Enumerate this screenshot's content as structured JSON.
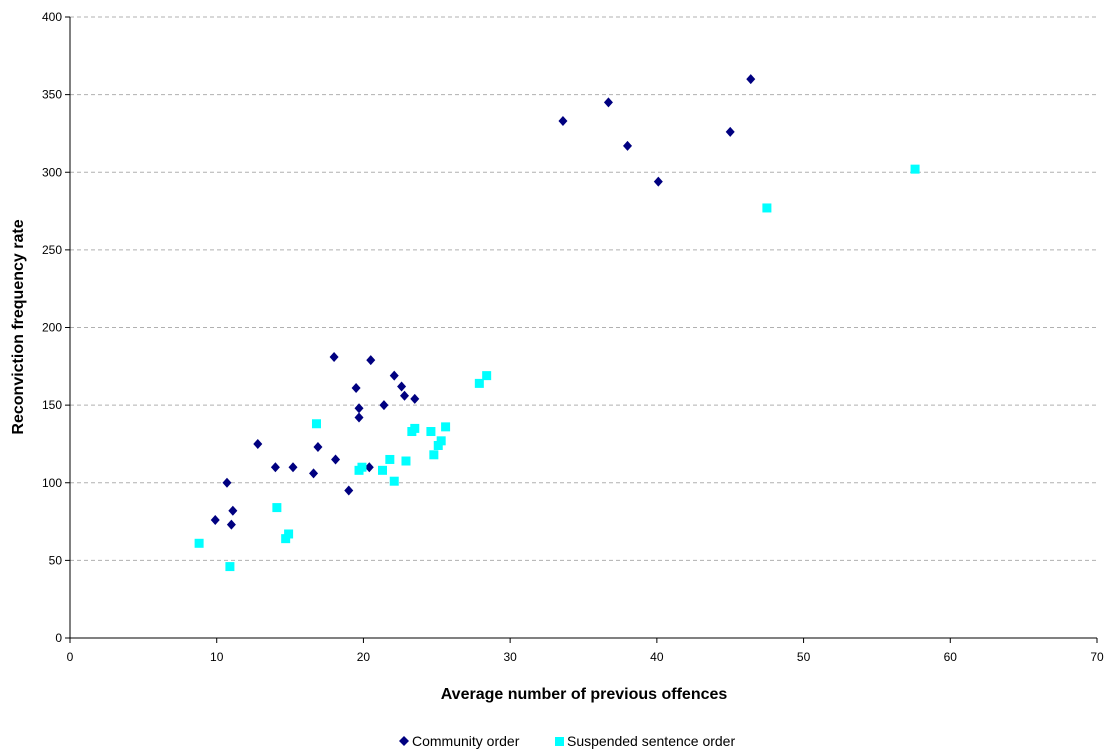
{
  "chart_data": {
    "type": "scatter",
    "title": "",
    "xlabel": "Average number of previous offences",
    "ylabel": "Reconviction frequency rate",
    "xlim": [
      0,
      70
    ],
    "ylim": [
      0,
      400
    ],
    "x_ticks": [
      0,
      10,
      20,
      30,
      40,
      50,
      60,
      70
    ],
    "y_ticks": [
      0,
      50,
      100,
      150,
      200,
      250,
      300,
      350,
      400
    ],
    "grid": "horizontal-dashed",
    "legend_position": "bottom",
    "series": [
      {
        "name": "Community order",
        "marker": "diamond",
        "color": "#000080",
        "points": [
          [
            9.9,
            76
          ],
          [
            10.7,
            100
          ],
          [
            11.0,
            73
          ],
          [
            11.1,
            82
          ],
          [
            12.8,
            125
          ],
          [
            14.0,
            110
          ],
          [
            15.2,
            110
          ],
          [
            16.6,
            106
          ],
          [
            16.9,
            123
          ],
          [
            18.0,
            181
          ],
          [
            18.1,
            115
          ],
          [
            19.0,
            95
          ],
          [
            19.5,
            161
          ],
          [
            19.7,
            148
          ],
          [
            19.7,
            142
          ],
          [
            20.4,
            110
          ],
          [
            20.5,
            179
          ],
          [
            21.4,
            150
          ],
          [
            22.1,
            169
          ],
          [
            22.6,
            162
          ],
          [
            22.8,
            156
          ],
          [
            23.5,
            154
          ],
          [
            33.6,
            333
          ],
          [
            36.7,
            345
          ],
          [
            38.0,
            317
          ],
          [
            40.1,
            294
          ],
          [
            45.0,
            326
          ],
          [
            46.4,
            360
          ]
        ]
      },
      {
        "name": "Suspended sentence order",
        "marker": "square",
        "color": "#00FFFF",
        "points": [
          [
            8.8,
            61
          ],
          [
            10.9,
            46
          ],
          [
            14.1,
            84
          ],
          [
            14.7,
            64
          ],
          [
            14.9,
            67
          ],
          [
            16.8,
            138
          ],
          [
            19.7,
            108
          ],
          [
            19.9,
            110
          ],
          [
            21.3,
            108
          ],
          [
            21.8,
            115
          ],
          [
            22.1,
            101
          ],
          [
            22.9,
            114
          ],
          [
            23.3,
            133
          ],
          [
            23.5,
            135
          ],
          [
            24.6,
            133
          ],
          [
            24.8,
            118
          ],
          [
            25.1,
            124
          ],
          [
            25.3,
            127
          ],
          [
            25.6,
            136
          ],
          [
            27.9,
            164
          ],
          [
            28.4,
            169
          ],
          [
            47.5,
            277
          ],
          [
            57.6,
            302
          ]
        ]
      }
    ]
  }
}
